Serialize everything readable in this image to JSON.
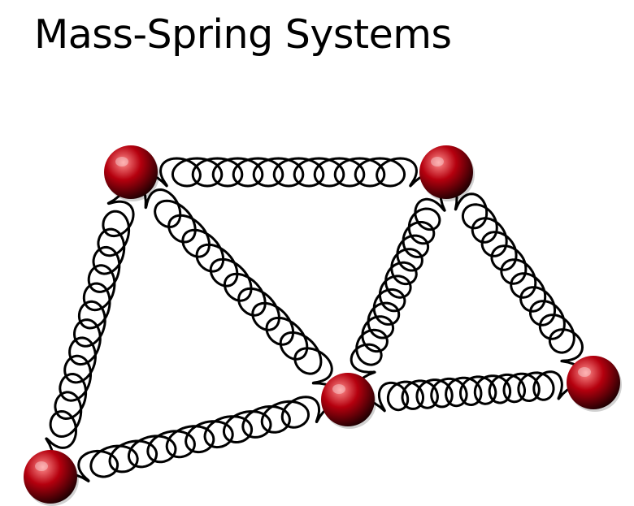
{
  "title": "Mass-Spring Systems",
  "colors": {
    "mass_highlight": "#ff8c8c",
    "mass_body": "#b5000e",
    "mass_shadow": "#1e0002",
    "spring_stroke": "#000000"
  },
  "masses": [
    {
      "id": "top-left"
    },
    {
      "id": "top-right"
    },
    {
      "id": "bottom-left"
    },
    {
      "id": "center"
    },
    {
      "id": "right"
    }
  ],
  "springs": [
    {
      "id": "top",
      "from": "top-left",
      "to": "top-right",
      "coils": 12
    },
    {
      "id": "left",
      "from": "top-left",
      "to": "bottom-left",
      "coils": 13
    },
    {
      "id": "diagonal-left",
      "from": "top-left",
      "to": "center",
      "coils": 12
    },
    {
      "id": "diagonal-center",
      "from": "center",
      "to": "top-right",
      "coils": 12
    },
    {
      "id": "diagonal-right",
      "from": "top-right",
      "to": "right",
      "coils": 11
    },
    {
      "id": "bottom-left",
      "from": "bottom-left",
      "to": "center",
      "coils": 12
    },
    {
      "id": "bottom-right",
      "from": "center",
      "to": "right",
      "coils": 12
    }
  ]
}
